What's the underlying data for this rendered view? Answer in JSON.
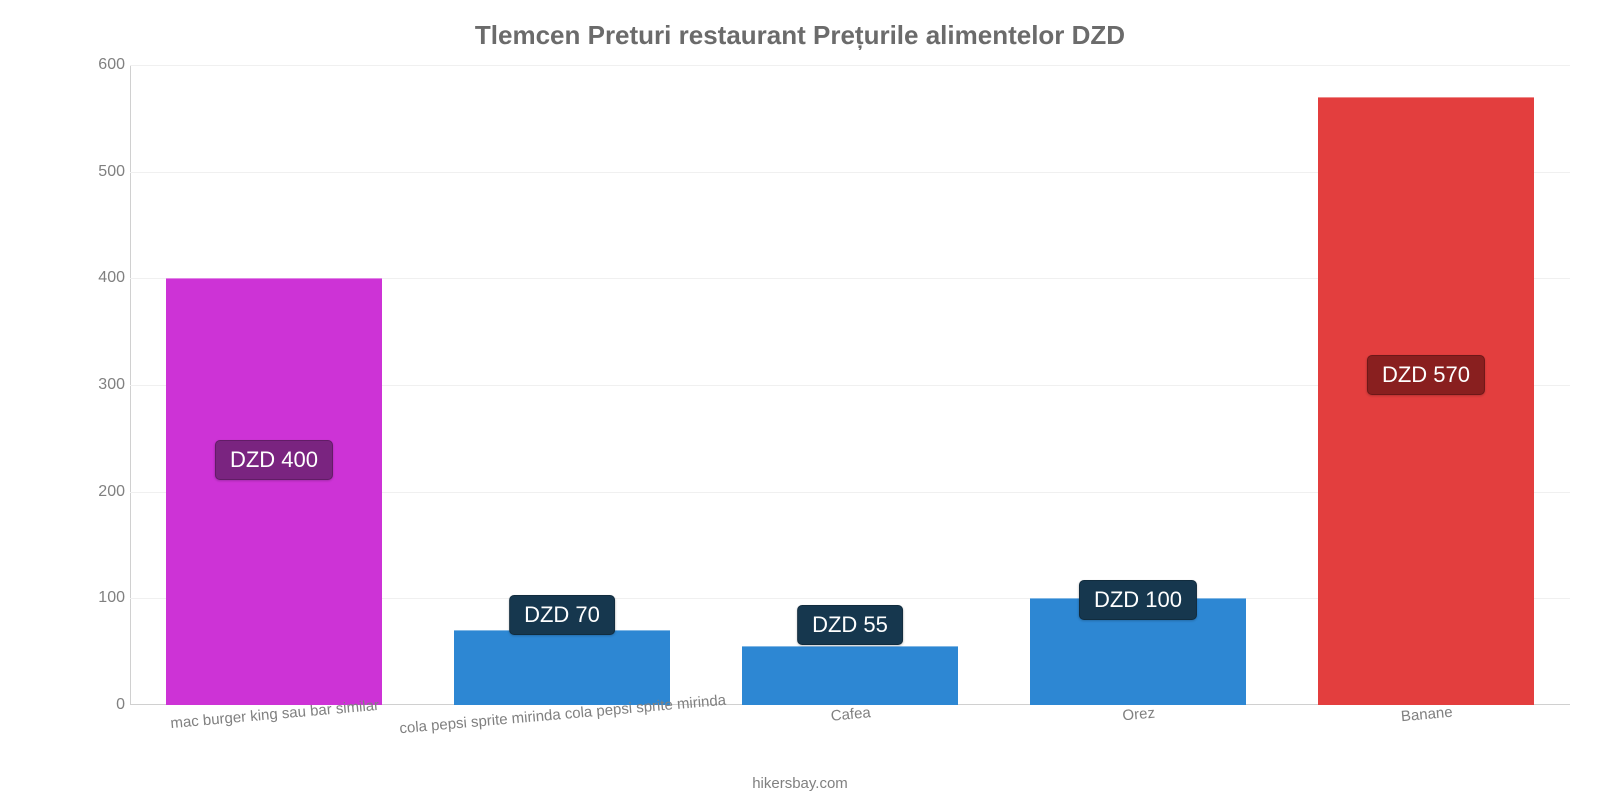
{
  "chart": {
    "type": "bar",
    "title": "Tlemcen Preturi restaurant Prețurile alimentelor DZD",
    "title_fontsize": 26,
    "title_color": "#6b6b6b",
    "background_color": "#ffffff",
    "grid_color": "#f0f0f0",
    "axis_color": "#d0d0d0",
    "tick_color": "#808080",
    "tick_fontsize": 16,
    "xlabel_fontsize": 15,
    "xlabel_rotation_deg": -5,
    "y": {
      "min": 0,
      "max": 600,
      "step": 100,
      "ticks": [
        0,
        100,
        200,
        300,
        400,
        500,
        600
      ]
    },
    "bar_width": 0.75,
    "categories": [
      "mac burger king sau bar similar",
      "cola pepsi sprite mirinda cola pepsi sprite mirinda",
      "Cafea",
      "Orez",
      "Banane"
    ],
    "values": [
      400,
      70,
      55,
      100,
      570
    ],
    "bar_colors": [
      "#cd33d6",
      "#2d87d3",
      "#2d87d3",
      "#2d87d3",
      "#e33e3e"
    ],
    "value_labels": [
      "DZD 400",
      "DZD 70",
      "DZD 55",
      "DZD 100",
      "DZD 570"
    ],
    "label_bg_colors": [
      "#7a2480",
      "#16374e",
      "#16374e",
      "#16374e",
      "#891f1f"
    ],
    "label_positions_y": [
      225,
      70,
      60,
      85,
      310
    ],
    "label_fontsize": 22,
    "label_text_color": "#ffffff"
  },
  "credit": "hikersbay.com"
}
